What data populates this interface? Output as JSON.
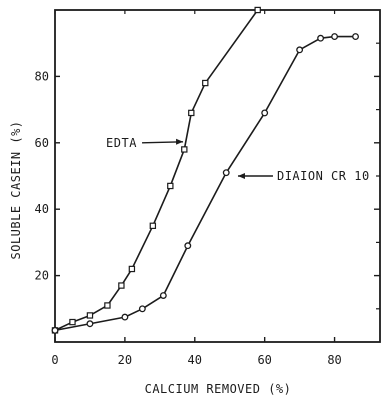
{
  "chart_data": {
    "type": "line",
    "title": "",
    "xlabel": "CALCIUM REMOVED (%)",
    "ylabel": "SOLUBLE CASEIN (%)",
    "xlim": [
      0,
      93
    ],
    "ylim": [
      0,
      100
    ],
    "x_ticks": [
      0,
      20,
      40,
      60,
      80
    ],
    "x_tick_labels": [
      "0",
      "20",
      "40",
      "60",
      "80"
    ],
    "y_ticks": [
      20,
      40,
      60,
      80
    ],
    "y_tick_labels": [
      "20",
      "40",
      "60",
      "80"
    ],
    "grid": false,
    "legend": "none",
    "series": [
      {
        "name": "EDTA",
        "marker": "square",
        "x": [
          0,
          5,
          10,
          15,
          19,
          22,
          28,
          33,
          37,
          39,
          43,
          58
        ],
        "y": [
          3.5,
          6,
          8,
          11,
          17,
          22,
          35,
          47,
          58,
          69,
          78,
          100
        ]
      },
      {
        "name": "DIAION CR 10",
        "marker": "circle",
        "x": [
          0,
          10,
          20,
          25,
          31,
          38,
          49,
          60,
          70,
          76,
          80,
          86
        ],
        "y": [
          3.5,
          5.5,
          7.5,
          10,
          14,
          29,
          51,
          69,
          88,
          91.5,
          92,
          92
        ]
      }
    ],
    "annotations": [
      {
        "text": "EDTA",
        "series": "EDTA",
        "at_x": 37.5,
        "at_y": 60
      },
      {
        "text": "DIAION CR 10",
        "series": "DIAION CR 10",
        "at_x": 51.5,
        "at_y": 50
      }
    ],
    "colors": {
      "ink": "#1c1c1c",
      "background": "#ffffff"
    }
  }
}
